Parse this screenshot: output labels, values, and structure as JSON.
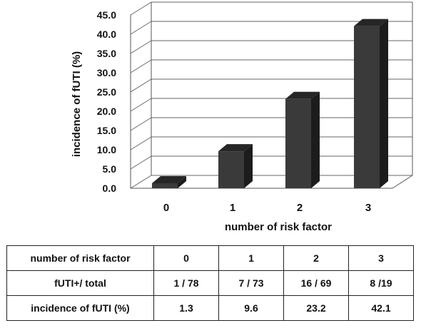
{
  "chart_data": {
    "type": "bar",
    "categories": [
      "0",
      "1",
      "2",
      "3"
    ],
    "values": [
      1.3,
      9.6,
      23.2,
      42.1
    ],
    "xlabel": "number of risk factor",
    "ylabel": "incidence of fUTI (%)",
    "ylim": [
      0,
      45
    ],
    "yticks": [
      "0.0",
      "5.0",
      "10.0",
      "15.0",
      "20.0",
      "25.0",
      "30.0",
      "35.0",
      "40.0",
      "45.0"
    ],
    "grid": true,
    "bar_color": "#3a3a3a"
  },
  "table": {
    "rows": [
      {
        "label": "number of risk factor",
        "cells": [
          "0",
          "1",
          "2",
          "3"
        ]
      },
      {
        "label": "fUTI+/ total",
        "cells": [
          "1 / 78",
          "7 / 73",
          "16 / 69",
          "8 /19"
        ]
      },
      {
        "label": "incidence of fUTI  (%)",
        "cells": [
          "1.3",
          "9.6",
          "23.2",
          "42.1"
        ]
      }
    ]
  }
}
